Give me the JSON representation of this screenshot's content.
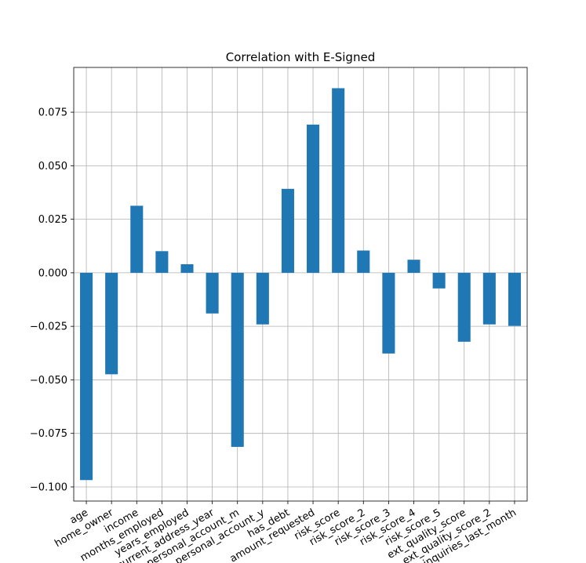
{
  "chart_data": {
    "type": "bar",
    "title": "Correlation with E-Signed",
    "xlabel": "",
    "ylabel": "",
    "categories": [
      "age",
      "home_owner",
      "income",
      "months_employed",
      "years_employed",
      "current_address_year",
      "personal_account_m",
      "personal_account_y",
      "has_debt",
      "amount_requested",
      "risk_score",
      "risk_score_2",
      "risk_score_3",
      "risk_score_4",
      "risk_score_5",
      "ext_quality_score",
      "ext_quality_score_2",
      "inquiries_last_month"
    ],
    "values": [
      -0.0968,
      -0.0474,
      0.0313,
      0.0101,
      0.004,
      -0.019,
      -0.0813,
      -0.0241,
      0.0392,
      0.0692,
      0.0862,
      0.0104,
      -0.0377,
      0.0061,
      -0.0073,
      -0.0322,
      -0.0241,
      -0.0248
    ],
    "yticks": [
      -0.1,
      -0.075,
      -0.05,
      -0.025,
      0.0,
      0.025,
      0.05,
      0.075
    ],
    "ytick_labels": [
      "−0.100",
      "−0.075",
      "−0.050",
      "−0.025",
      "0.000",
      "0.025",
      "0.050",
      "0.075"
    ],
    "ylim": [
      -0.1066,
      0.0959
    ],
    "grid": true,
    "bar_color": "#1f77b4",
    "grid_color": "#b0b0b0"
  }
}
